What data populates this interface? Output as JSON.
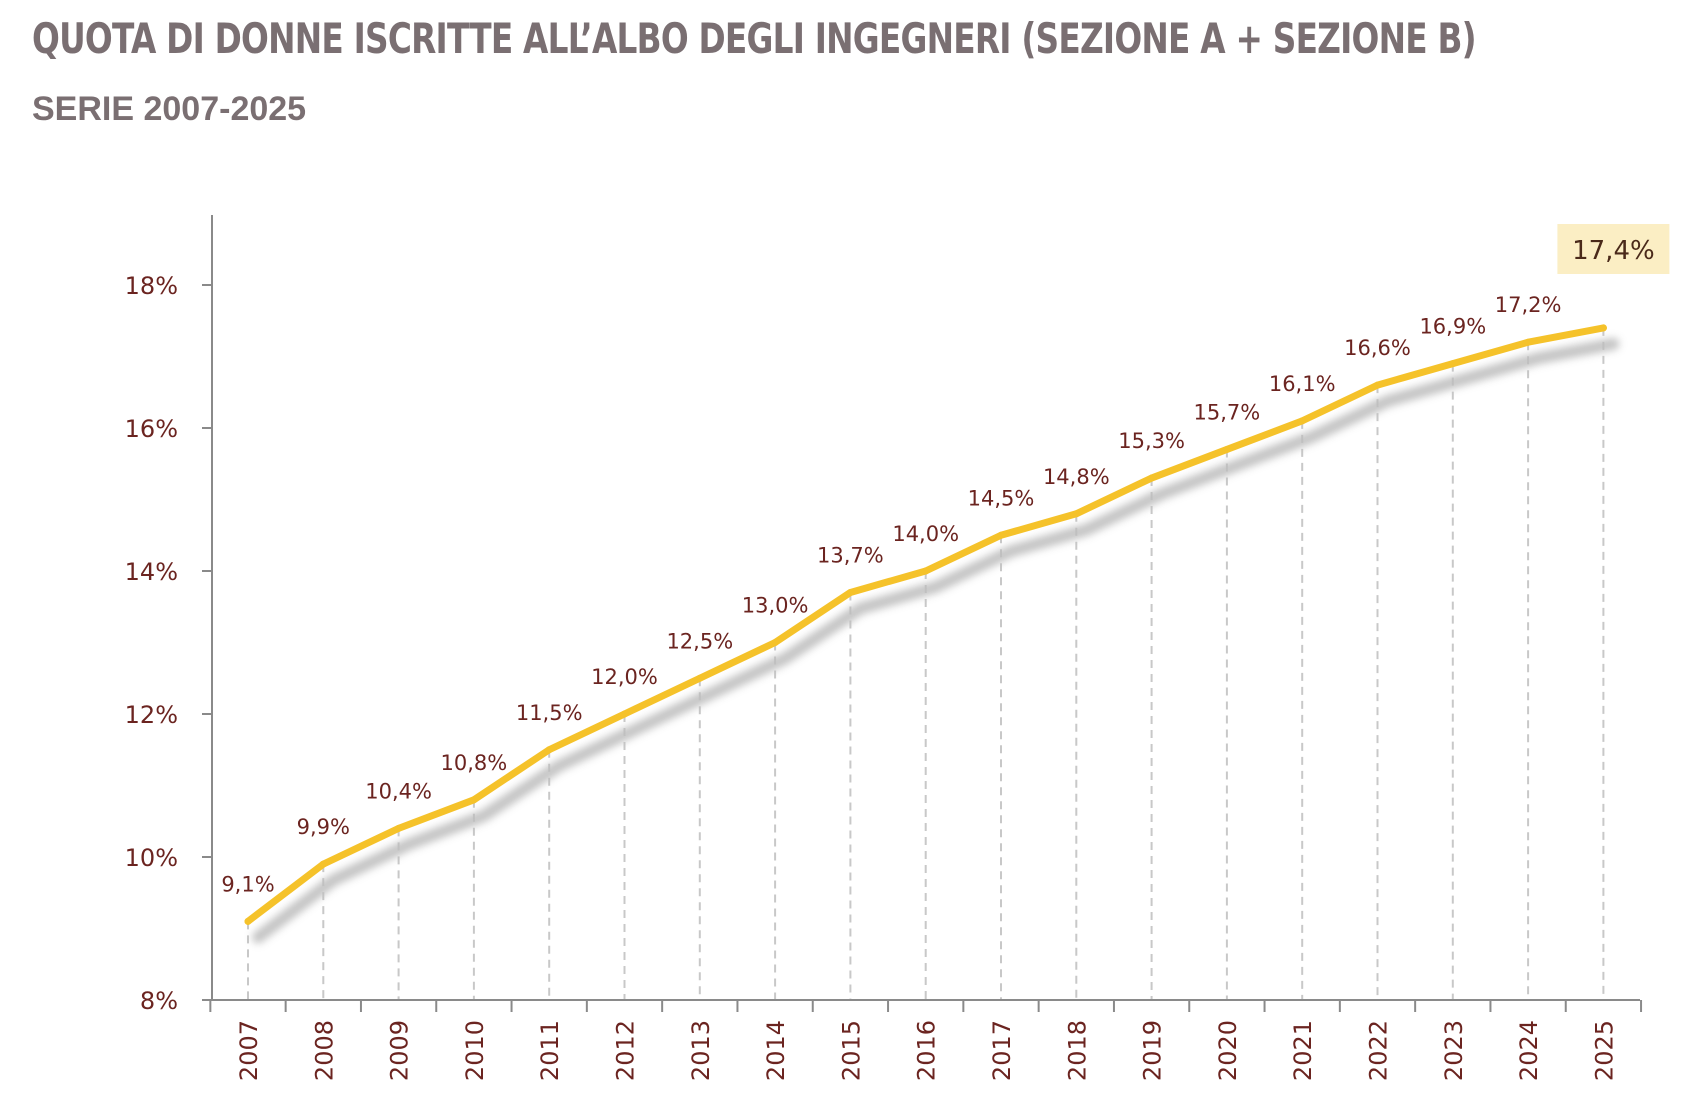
{
  "header": {
    "title": "QUOTA DI DONNE ISCRITTE ALL’ALBO DEGLI INGEGNERI (SEZIONE A + SEZIONE B)",
    "subtitle": "SERIE 2007-2025"
  },
  "colors": {
    "line": "#f5c22a",
    "shadow": "#bdbdbd",
    "text": "#6b2420",
    "highlight_bg": "#fbeec4",
    "title": "#7a6f72"
  },
  "chart_data": {
    "type": "line",
    "title": "QUOTA DI DONNE ISCRITTE ALL’ALBO DEGLI INGEGNERI (SEZIONE A + SEZIONE B)",
    "subtitle": "SERIE 2007-2025",
    "xlabel": "",
    "ylabel": "",
    "ylim": [
      8,
      19
    ],
    "yticks": [
      8,
      10,
      12,
      14,
      16,
      18
    ],
    "ytick_labels": [
      "8%",
      "10%",
      "12%",
      "14%",
      "16%",
      "18%"
    ],
    "grid": false,
    "x": [
      "2007",
      "2008",
      "2009",
      "2010",
      "2011",
      "2012",
      "2013",
      "2014",
      "2015",
      "2016",
      "2017",
      "2018",
      "2019",
      "2020",
      "2021",
      "2022",
      "2023",
      "2024",
      "2025"
    ],
    "series": [
      {
        "values": [
          9.1,
          9.9,
          10.4,
          10.8,
          11.5,
          12.0,
          12.5,
          13.0,
          13.7,
          14.0,
          14.5,
          14.8,
          15.3,
          15.7,
          16.1,
          16.6,
          16.9,
          17.2,
          17.4
        ],
        "labels": [
          "9,1%",
          "9,9%",
          "10,4%",
          "10,8%",
          "11,5%",
          "12,0%",
          "12,5%",
          "13,0%",
          "13,7%",
          "14,0%",
          "14,5%",
          "14,8%",
          "15,3%",
          "15,7%",
          "16,1%",
          "16,6%",
          "16,9%",
          "17,2%",
          "17,4%"
        ]
      }
    ]
  }
}
